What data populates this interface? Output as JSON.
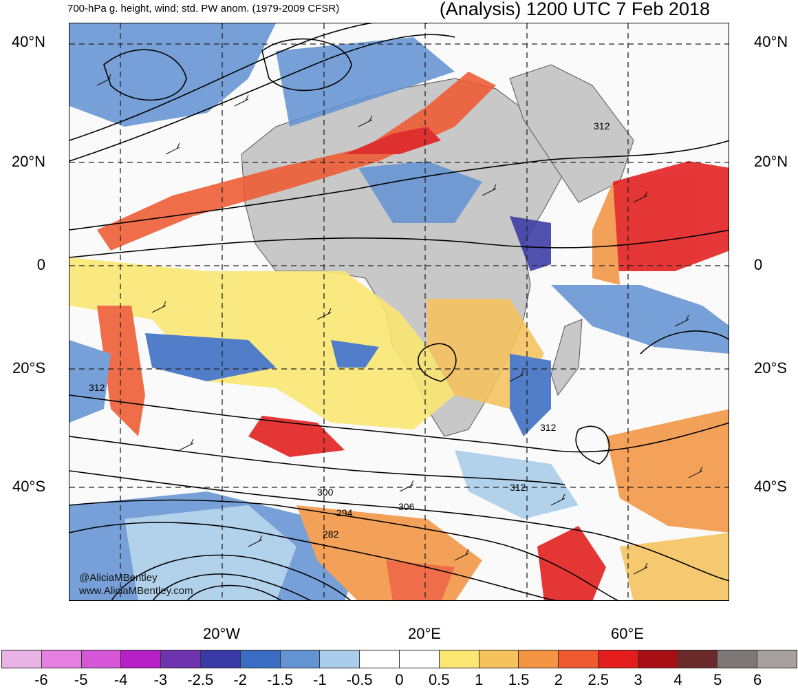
{
  "title_left": "700-hPa g. height, wind; std. PW anom. (1979-2009 CFSR)",
  "title_right": "(Analysis) 1200 UTC 7 Feb 2018",
  "lat_labels": [
    "40°N",
    "20°N",
    "0",
    "20°S",
    "40°S"
  ],
  "lon_labels": [
    "20°W",
    "20°E",
    "60°E"
  ],
  "contour_labels": [
    "312",
    "312",
    "312",
    "312",
    "300",
    "294",
    "306",
    "282"
  ],
  "credits": [
    "@AliciaMBentley",
    "www.AliciaMBentley.com"
  ],
  "colorbar": {
    "ticks": [
      "-6",
      "-5",
      "-4",
      "-3",
      "-2.5",
      "-2",
      "-1.5",
      "-1",
      "-0.5",
      "0",
      "0.5",
      "1",
      "1.5",
      "2",
      "2.5",
      "3",
      "4",
      "5",
      "6"
    ],
    "colors": [
      "#e9b3e6",
      "#e57fe0",
      "#d656d8",
      "#b820c7",
      "#6e34b0",
      "#3a3aa6",
      "#3a6cc3",
      "#6494d3",
      "#a9cdeb",
      "#ffffff",
      "#ffffff",
      "#fbe771",
      "#f6c25c",
      "#f39442",
      "#ef5a31",
      "#e31c1c",
      "#a80f14",
      "#6b2a2a",
      "#7f7777",
      "#a8a0a0"
    ]
  },
  "colors": {
    "land_no_data": "#c8c8c8"
  }
}
